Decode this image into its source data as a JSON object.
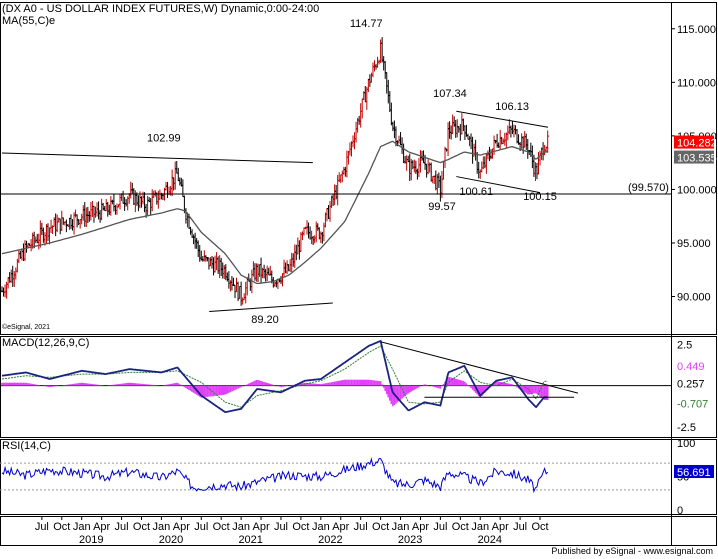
{
  "chart_data": {
    "type": "line",
    "title": "(DX A0 - US DOLLAR INDEX FUTURES,W) Dynamic,0:00-24:00",
    "watermark": "©eSignal, 2021",
    "footer": "Published by eSignal - www.esignal.com",
    "x_axis": {
      "month_labels": [
        "Jul",
        "Oct",
        "Jan",
        "Apr",
        "Jul",
        "Oct",
        "Jan",
        "Apr",
        "Jul",
        "Oct",
        "Jan",
        "Apr",
        "Jul",
        "Oct",
        "Jan",
        "Apr",
        "Jul",
        "Oct",
        "Jan",
        "Apr",
        "Jul",
        "Oct",
        "Jan",
        "Apr",
        "Jul",
        "Oct"
      ],
      "year_labels": [
        "2019",
        "2020",
        "2021",
        "2022",
        "2023",
        "2024"
      ]
    },
    "price_panel": {
      "ma_label": "MA(55,C)e",
      "yticks": [
        "115.000",
        "110.000",
        "105.000",
        "100.000",
        "95.000",
        "90.000"
      ],
      "ylim": [
        86.5,
        117.5
      ],
      "last_price": "104.282",
      "ma_value": "103.535",
      "support_label": "(99.570)",
      "support_level": 99.57,
      "annotations": [
        {
          "text": "102.99",
          "value": 102.99
        },
        {
          "text": "114.77",
          "value": 114.77
        },
        {
          "text": "107.34",
          "value": 107.34
        },
        {
          "text": "106.13",
          "value": 106.13
        },
        {
          "text": "99.57",
          "value": 99.57
        },
        {
          "text": "100.61",
          "value": 100.61
        },
        {
          "text": "100.15",
          "value": 100.15
        },
        {
          "text": "89.20",
          "value": 89.2
        }
      ],
      "close_series_date": [
        2018.0,
        2018.3,
        2018.6,
        2019.0,
        2019.3,
        2019.6,
        2019.8,
        2020.0,
        2020.2,
        2020.3,
        2020.5,
        2020.8,
        2021.0,
        2021.2,
        2021.4,
        2021.6,
        2021.8,
        2022.0,
        2022.3,
        2022.6,
        2022.75,
        2022.9,
        2023.1,
        2023.3,
        2023.5,
        2023.6,
        2023.8,
        2024.0,
        2024.2,
        2024.4,
        2024.6,
        2024.7,
        2024.8
      ],
      "close_series_value": [
        90.5,
        94.5,
        96.5,
        97.5,
        98.0,
        99.5,
        98.5,
        99.5,
        101.5,
        98.0,
        93.5,
        92.5,
        90.0,
        92.5,
        91.5,
        92.5,
        96.0,
        96.0,
        102.0,
        110.0,
        113.0,
        106.0,
        102.0,
        102.5,
        100.0,
        105.5,
        106.0,
        101.5,
        104.5,
        105.5,
        104.0,
        101.5,
        104.3
      ],
      "ma_series_value": [
        94.0,
        94.5,
        95.0,
        95.8,
        96.5,
        97.2,
        97.5,
        97.8,
        98.2,
        98.0,
        96.0,
        94.0,
        92.0,
        91.2,
        91.4,
        92.0,
        93.2,
        94.5,
        97.0,
        101.5,
        104.0,
        104.5,
        103.5,
        103.0,
        102.5,
        102.8,
        103.5,
        103.2,
        103.6,
        104.0,
        103.5,
        102.8,
        103.5
      ]
    },
    "macd_panel": {
      "label": "MACD(12,26,9,C)",
      "yticks": [
        "2.5",
        "0.0",
        "-2.5"
      ],
      "ylim": [
        -3.1,
        3.0
      ],
      "hist_value": "0.449",
      "signal_value": "0.257",
      "macd_value": "-0.707",
      "macd_series_date": [
        2018.0,
        2018.3,
        2018.6,
        2019.0,
        2019.3,
        2019.6,
        2020.0,
        2020.2,
        2020.5,
        2020.8,
        2021.0,
        2021.2,
        2021.5,
        2021.8,
        2022.0,
        2022.3,
        2022.6,
        2022.75,
        2022.9,
        2023.1,
        2023.3,
        2023.5,
        2023.6,
        2023.8,
        2024.0,
        2024.2,
        2024.4,
        2024.6,
        2024.7,
        2024.8
      ],
      "macd_series_value": [
        0.6,
        0.8,
        0.4,
        0.9,
        0.7,
        1.0,
        0.8,
        1.1,
        -0.6,
        -1.6,
        -1.4,
        -0.2,
        -0.4,
        0.3,
        0.4,
        1.4,
        2.4,
        2.7,
        -0.4,
        -1.5,
        -1.0,
        -1.2,
        0.8,
        1.2,
        -0.6,
        0.3,
        0.5,
        -0.8,
        -1.3,
        -0.7
      ],
      "signal_series_value": [
        0.4,
        0.6,
        0.5,
        0.7,
        0.7,
        0.8,
        0.8,
        0.9,
        0.2,
        -1.0,
        -1.3,
        -0.6,
        -0.3,
        0.1,
        0.3,
        1.0,
        2.0,
        2.4,
        1.0,
        -1.0,
        -1.1,
        -1.0,
        0.2,
        0.9,
        0.2,
        0.0,
        0.4,
        -0.2,
        -0.8,
        0.26
      ]
    },
    "rsi_panel": {
      "label": "RSI(14,C)",
      "yticks": [
        "100",
        "50",
        "0"
      ],
      "ylim": [
        0,
        100
      ],
      "value": "56.691",
      "rsi_series_date": [
        2018.0,
        2018.3,
        2018.6,
        2019.0,
        2019.3,
        2019.6,
        2020.0,
        2020.2,
        2020.4,
        2020.8,
        2021.0,
        2021.3,
        2021.6,
        2022.0,
        2022.3,
        2022.6,
        2022.75,
        2022.9,
        2023.1,
        2023.3,
        2023.5,
        2023.6,
        2023.8,
        2024.0,
        2024.2,
        2024.4,
        2024.6,
        2024.7,
        2024.8
      ],
      "rsi_series_value": [
        58,
        52,
        60,
        55,
        50,
        57,
        48,
        58,
        34,
        38,
        35,
        45,
        52,
        50,
        60,
        70,
        74,
        40,
        38,
        45,
        35,
        56,
        50,
        40,
        58,
        55,
        45,
        30,
        57
      ]
    },
    "colors": {
      "price_up": "#c00000",
      "price_down": "#000000",
      "ma": "#555555",
      "macd": "#1a237e",
      "signal": "#2e7d32",
      "histogram": "#e040fb",
      "rsi": "#0000cc",
      "last_price_badge": "#ff0000",
      "ma_badge": "#666666",
      "hist_badge": "#e040fb",
      "signal_badge": "#2e7d32",
      "rsi_badge": "#0000cc"
    }
  }
}
